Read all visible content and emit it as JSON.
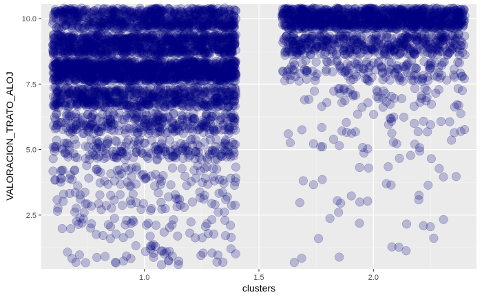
{
  "chart_data": {
    "type": "scatter",
    "title": "",
    "xlabel": "clusters",
    "ylabel": "VALORACION_TRATO_ALOJ",
    "xlim": [
      0.55,
      2.45
    ],
    "ylim": [
      0.45,
      10.55
    ],
    "x_ticks": [
      1.0,
      1.5,
      2.0
    ],
    "x_tick_labels": [
      "1.0",
      "1.5",
      "2.0"
    ],
    "y_ticks": [
      2.5,
      5.0,
      7.5,
      10.0
    ],
    "y_tick_labels": [
      "2.5",
      "5.0",
      "7.5",
      "10.0"
    ],
    "grid": true,
    "legend": "none",
    "point_color": "#000080",
    "point_opacity": 0.22,
    "jitter_width": 0.4,
    "series": [
      {
        "cluster": 1,
        "points_per_value": {
          "1": 40,
          "2": 45,
          "3": 60,
          "4": 80,
          "5": 190,
          "6": 290,
          "7": 570,
          "8": 1160,
          "9": 850,
          "10": 720
        }
      },
      {
        "cluster": 2,
        "points_per_value": {
          "1": 6,
          "2": 8,
          "3": 9,
          "4": 12,
          "5": 18,
          "6": 28,
          "7": 50,
          "8": 150,
          "9": 420,
          "10": 1000
        }
      }
    ]
  },
  "colors": {
    "panel_background": "#ebebeb",
    "grid_major": "#ffffff",
    "tick_text": "#4d4d4d",
    "title_text": "#000000"
  }
}
